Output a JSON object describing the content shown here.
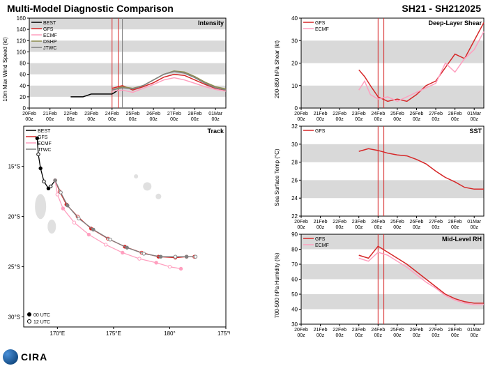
{
  "header": {
    "title_left": "Multi-Model Diagnostic Comparison",
    "title_right": "SH21 - SH212025"
  },
  "colors": {
    "best": "#000000",
    "gfs": "#d62728",
    "ecmf": "#ff9fbf",
    "dshp": "#8c8c4d",
    "jtwc": "#808080",
    "band": "#d9d9d9",
    "axis": "#000000",
    "vline1": "#d62728",
    "vline2": "#808080"
  },
  "x_axis": {
    "ticks": [
      "20Feb\n00z",
      "21Feb\n00z",
      "22Feb\n00z",
      "23Feb\n00z",
      "24Feb\n00z",
      "25Feb\n00z",
      "26Feb\n00z",
      "27Feb\n00z",
      "28Feb\n00z",
      "01Mar\n00z"
    ],
    "fontsize": 7
  },
  "intensity": {
    "title": "Intensity",
    "ylabel": "10m Max Wind Speed (kt)",
    "ylim": [
      0,
      160
    ],
    "ytick_step": 20,
    "bands": [
      [
        20,
        40
      ],
      [
        60,
        80
      ],
      [
        100,
        120
      ],
      [
        140,
        160
      ]
    ],
    "vlines": [
      4.0,
      4.3,
      4.5
    ],
    "legend": [
      "BEST",
      "GFS",
      "ECMF",
      "DSHP",
      "JTWC"
    ],
    "series": {
      "BEST": {
        "x": [
          2.0,
          2.3,
          2.6,
          3.0,
          3.3,
          3.6,
          4.0,
          4.3
        ],
        "y": [
          20,
          20,
          20,
          25,
          25,
          25,
          25,
          32
        ],
        "color": "#000000"
      },
      "GFS": {
        "x": [
          4.0,
          4.5,
          5.0,
          5.5,
          6.0,
          6.5,
          7.0,
          7.5,
          8.0,
          8.5,
          9.0,
          9.5
        ],
        "y": [
          35,
          40,
          32,
          38,
          45,
          55,
          60,
          58,
          50,
          42,
          35,
          32
        ],
        "color": "#d62728"
      },
      "ECMF": {
        "x": [
          4.0,
          4.5,
          5.0,
          5.5,
          6.0,
          6.5,
          7.0,
          7.5,
          8.0,
          8.5,
          9.0,
          9.5
        ],
        "y": [
          30,
          32,
          28,
          35,
          42,
          50,
          54,
          50,
          44,
          38,
          33,
          30
        ],
        "color": "#ff9fbf"
      },
      "DSHP": {
        "x": [
          4.0,
          4.5,
          5.0,
          5.5,
          6.0,
          6.5,
          7.0,
          7.5,
          8.0,
          8.5,
          9.0,
          9.5
        ],
        "y": [
          32,
          38,
          35,
          40,
          50,
          60,
          66,
          64,
          56,
          46,
          38,
          34
        ],
        "color": "#8c8c4d"
      },
      "JTWC": {
        "x": [
          4.0,
          4.5,
          5.0,
          5.5,
          6.0,
          6.5,
          7.0,
          7.5,
          8.0,
          8.5,
          9.0,
          9.5
        ],
        "y": [
          32,
          36,
          34,
          40,
          50,
          60,
          65,
          62,
          54,
          44,
          36,
          32
        ],
        "color": "#808080"
      }
    }
  },
  "shear": {
    "title": "Deep-Layer Shear",
    "ylabel": "200-850 hPa Shear (kt)",
    "ylim": [
      0,
      40
    ],
    "ytick_step": 10,
    "bands": [
      [
        0,
        10
      ],
      [
        20,
        30
      ]
    ],
    "vlines": [
      4.0,
      4.3
    ],
    "legend": [
      "GFS",
      "ECMF"
    ],
    "series": {
      "GFS": {
        "x": [
          3.0,
          3.3,
          3.6,
          4.0,
          4.5,
          5.0,
          5.5,
          6.0,
          6.5,
          7.0,
          7.5,
          8.0,
          8.5,
          9.0,
          9.5
        ],
        "y": [
          17,
          14,
          10,
          5,
          3,
          4,
          3,
          6,
          10,
          12,
          18,
          24,
          22,
          30,
          38
        ],
        "color": "#d62728"
      },
      "ECMF": {
        "x": [
          3.0,
          3.3,
          3.6,
          4.0,
          4.5,
          5.0,
          5.5,
          6.0,
          6.5,
          7.0,
          7.5,
          8.0,
          8.5,
          9.0,
          9.5
        ],
        "y": [
          8,
          12,
          6,
          4,
          5,
          3,
          5,
          7,
          9,
          11,
          20,
          16,
          22,
          26,
          34
        ],
        "color": "#ff9fbf"
      }
    }
  },
  "sst": {
    "title": "SST",
    "ylabel": "Sea Surface Temp (°C)",
    "ylim": [
      22,
      32
    ],
    "ytick_step": 2,
    "bands": [
      [
        24,
        26
      ],
      [
        28,
        30
      ]
    ],
    "vlines": [
      4.0,
      4.3
    ],
    "legend": [
      "GFS"
    ],
    "series": {
      "GFS": {
        "x": [
          3.0,
          3.5,
          4.0,
          4.5,
          5.0,
          5.5,
          6.0,
          6.5,
          7.0,
          7.5,
          8.0,
          8.5,
          9.0,
          9.5
        ],
        "y": [
          29.2,
          29.5,
          29.3,
          29.0,
          28.8,
          28.7,
          28.3,
          27.8,
          27.0,
          26.3,
          25.8,
          25.2,
          25.0,
          25.0
        ],
        "color": "#d62728"
      }
    }
  },
  "rh": {
    "title": "Mid-Level RH",
    "ylabel": "700-500 hPa Humidity (%)",
    "ylim": [
      30,
      90
    ],
    "ytick_step": 10,
    "bands": [
      [
        40,
        50
      ],
      [
        60,
        70
      ],
      [
        80,
        90
      ]
    ],
    "vlines": [
      4.0,
      4.3
    ],
    "legend": [
      "GFS",
      "ECMF"
    ],
    "series": {
      "GFS": {
        "x": [
          3.0,
          3.5,
          4.0,
          4.5,
          5.0,
          5.5,
          6.0,
          6.5,
          7.0,
          7.5,
          8.0,
          8.5,
          9.0,
          9.5
        ],
        "y": [
          76,
          74,
          82,
          78,
          74,
          70,
          65,
          60,
          55,
          50,
          47,
          45,
          44,
          44
        ],
        "color": "#d62728"
      },
      "ECMF": {
        "x": [
          3.0,
          3.5,
          4.0,
          4.5,
          5.0,
          5.5,
          6.0,
          6.5,
          7.0,
          7.5,
          8.0,
          8.5,
          9.0,
          9.5
        ],
        "y": [
          74,
          72,
          78,
          76,
          72,
          68,
          63,
          58,
          54,
          49,
          46,
          44,
          43,
          43
        ],
        "color": "#ff9fbf"
      }
    }
  },
  "track": {
    "title": "Track",
    "xlabel_lon": [
      "170°E",
      "175°E",
      "180°",
      "175°W"
    ],
    "ylabel_lat": [
      "15°S",
      "20°S",
      "25°S",
      "30°S"
    ],
    "xlim": [
      167,
      185
    ],
    "ylim": [
      11,
      31
    ],
    "legend": [
      "BEST",
      "GFS",
      "ECMF",
      "JTWC"
    ],
    "legend_markers": [
      {
        "label": "00 UTC",
        "marker": "filled"
      },
      {
        "label": "12 UTC",
        "marker": "open"
      }
    ],
    "islands_color": "#e0e0e0",
    "series": {
      "BEST": {
        "color": "#000000",
        "pts": [
          [
            168.2,
            12.2
          ],
          [
            168.3,
            13.8
          ],
          [
            168.5,
            15.2
          ],
          [
            168.8,
            16.5
          ],
          [
            169.2,
            17.2
          ],
          [
            169.4,
            17.0
          ],
          [
            169.8,
            16.4
          ]
        ]
      },
      "GFS": {
        "color": "#d62728",
        "pts": [
          [
            169.8,
            16.4
          ],
          [
            170.2,
            17.5
          ],
          [
            170.8,
            18.8
          ],
          [
            171.8,
            20.0
          ],
          [
            173.0,
            21.2
          ],
          [
            174.5,
            22.2
          ],
          [
            176.0,
            23.0
          ],
          [
            177.5,
            23.6
          ],
          [
            179.0,
            24.0
          ],
          [
            180.5,
            24.1
          ],
          [
            181.5,
            24.0
          ],
          [
            182.2,
            24.0
          ]
        ]
      },
      "ECMF": {
        "color": "#ff9fbf",
        "pts": [
          [
            169.8,
            16.4
          ],
          [
            170.0,
            17.8
          ],
          [
            170.5,
            19.2
          ],
          [
            171.5,
            20.6
          ],
          [
            172.8,
            21.8
          ],
          [
            174.3,
            22.8
          ],
          [
            175.8,
            23.6
          ],
          [
            177.3,
            24.2
          ],
          [
            178.8,
            24.6
          ],
          [
            180.0,
            25.0
          ],
          [
            181.0,
            25.2
          ]
        ]
      },
      "JTWC": {
        "color": "#808080",
        "pts": [
          [
            169.8,
            16.4
          ],
          [
            170.3,
            17.6
          ],
          [
            170.9,
            18.9
          ],
          [
            171.9,
            20.2
          ],
          [
            173.2,
            21.3
          ],
          [
            174.7,
            22.3
          ],
          [
            176.2,
            23.1
          ],
          [
            177.7,
            23.7
          ],
          [
            179.2,
            24.0
          ],
          [
            180.5,
            24.0
          ],
          [
            181.5,
            24.0
          ],
          [
            182.3,
            24.0
          ]
        ]
      }
    }
  },
  "footer": {
    "logo_text": "CIRA"
  }
}
